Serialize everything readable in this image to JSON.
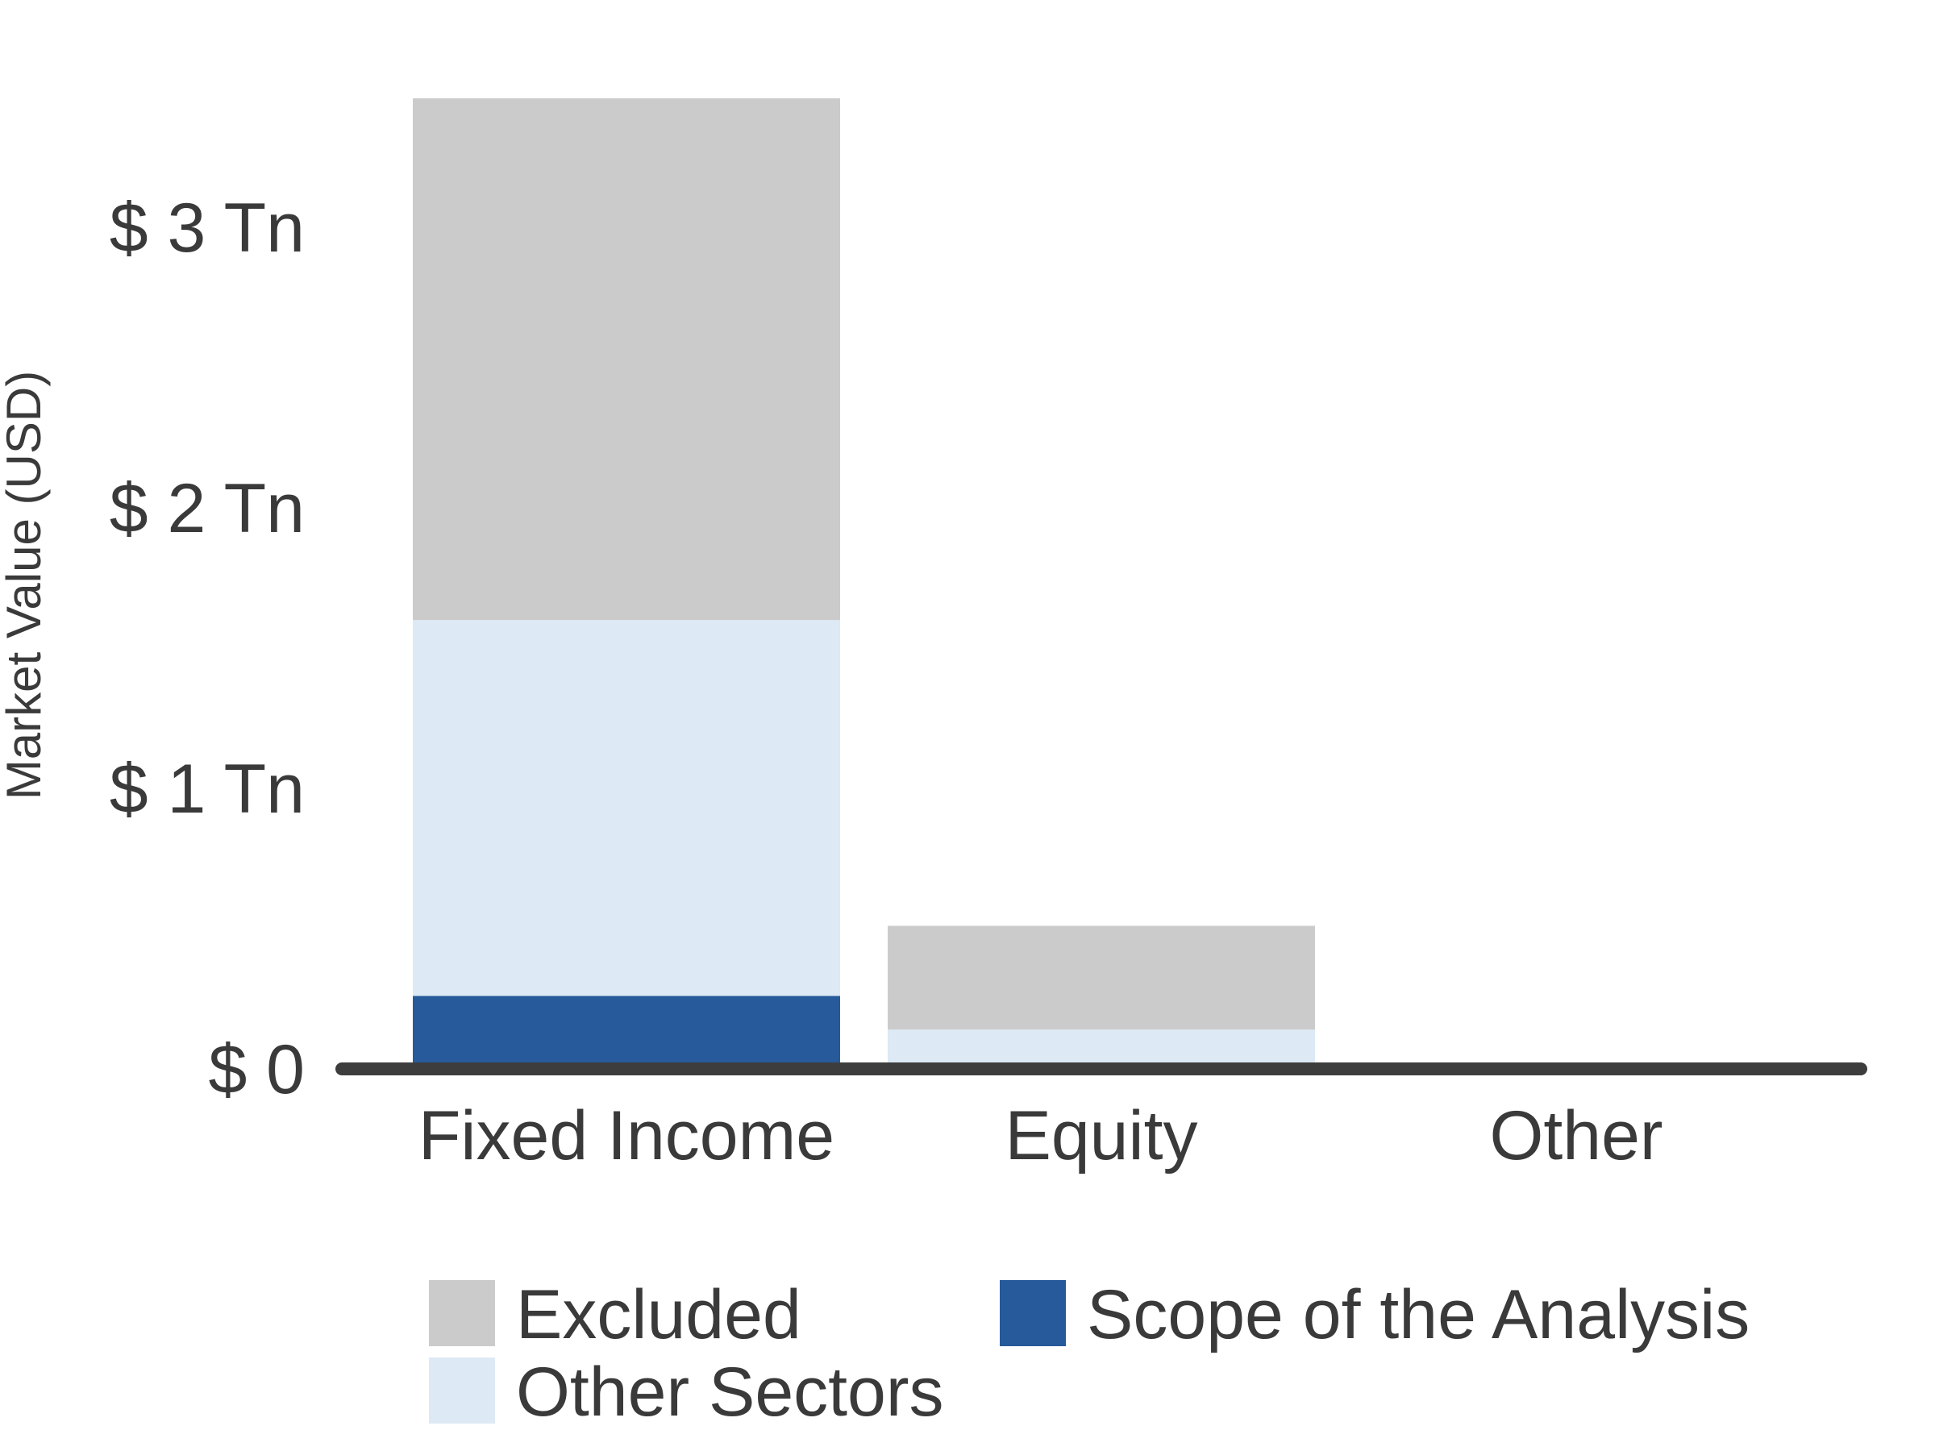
{
  "chart_data": {
    "type": "bar",
    "stacked": true,
    "categories": [
      "Fixed Income",
      "Equity",
      "Other"
    ],
    "series": [
      {
        "name": "Scope of the Analysis",
        "color": "#275a9a",
        "values": [
          0.26,
          0.0,
          0.0
        ]
      },
      {
        "name": "Other Sectors",
        "color": "#dde9f5",
        "values": [
          1.34,
          0.14,
          0.0
        ]
      },
      {
        "name": "Excluded",
        "color": "#cbcbcb",
        "values": [
          1.86,
          0.37,
          0.0
        ]
      }
    ],
    "ylabel": "Market Value (USD)",
    "yticks": [
      0,
      1,
      2,
      3
    ],
    "ytick_labels": [
      "$ 0",
      "$ 1 Tn",
      "$ 2 Tn",
      "$ 3 Tn"
    ],
    "ylim": [
      0,
      3.6
    ],
    "grid": false,
    "legend_position": "bottom",
    "legend_order": [
      "Excluded",
      "Scope of the Analysis",
      "Other Sectors"
    ],
    "axis_color": "#3d3d3d"
  }
}
